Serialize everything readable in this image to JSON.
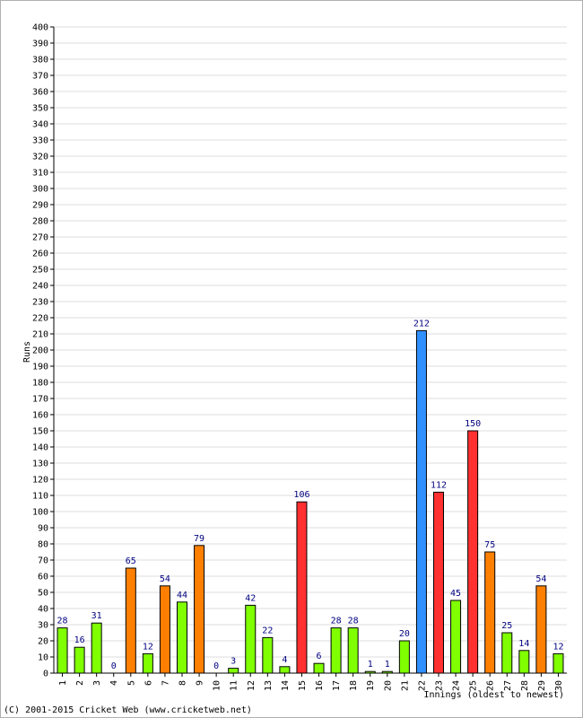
{
  "chart_data": {
    "type": "bar",
    "xlabel": "Innings (oldest to newest)",
    "ylabel": "Runs",
    "ylim": [
      0,
      400
    ],
    "ytick_step": 10,
    "grid": true,
    "categories": [
      "1",
      "2",
      "3",
      "4",
      "5",
      "6",
      "7",
      "8",
      "9",
      "10",
      "11",
      "12",
      "13",
      "14",
      "15",
      "16",
      "17",
      "18",
      "19",
      "20",
      "21",
      "22",
      "23",
      "24",
      "25",
      "26",
      "27",
      "28",
      "29",
      "30"
    ],
    "values": [
      28,
      16,
      31,
      0,
      65,
      12,
      54,
      44,
      79,
      0,
      3,
      42,
      22,
      4,
      106,
      6,
      28,
      28,
      1,
      1,
      20,
      212,
      112,
      45,
      150,
      75,
      25,
      14,
      54,
      12
    ],
    "bar_colors": [
      "#80ff00",
      "#80ff00",
      "#80ff00",
      "#80ff00",
      "#ff8000",
      "#80ff00",
      "#ff8000",
      "#80ff00",
      "#ff8000",
      "#80ff00",
      "#80ff00",
      "#80ff00",
      "#80ff00",
      "#80ff00",
      "#ff3030",
      "#80ff00",
      "#80ff00",
      "#80ff00",
      "#80ff00",
      "#80ff00",
      "#80ff00",
      "#3090ff",
      "#ff3030",
      "#80ff00",
      "#ff3030",
      "#ff8000",
      "#80ff00",
      "#80ff00",
      "#ff8000",
      "#80ff00"
    ]
  },
  "footer": "(C) 2001-2015 Cricket Web (www.cricketweb.net)"
}
